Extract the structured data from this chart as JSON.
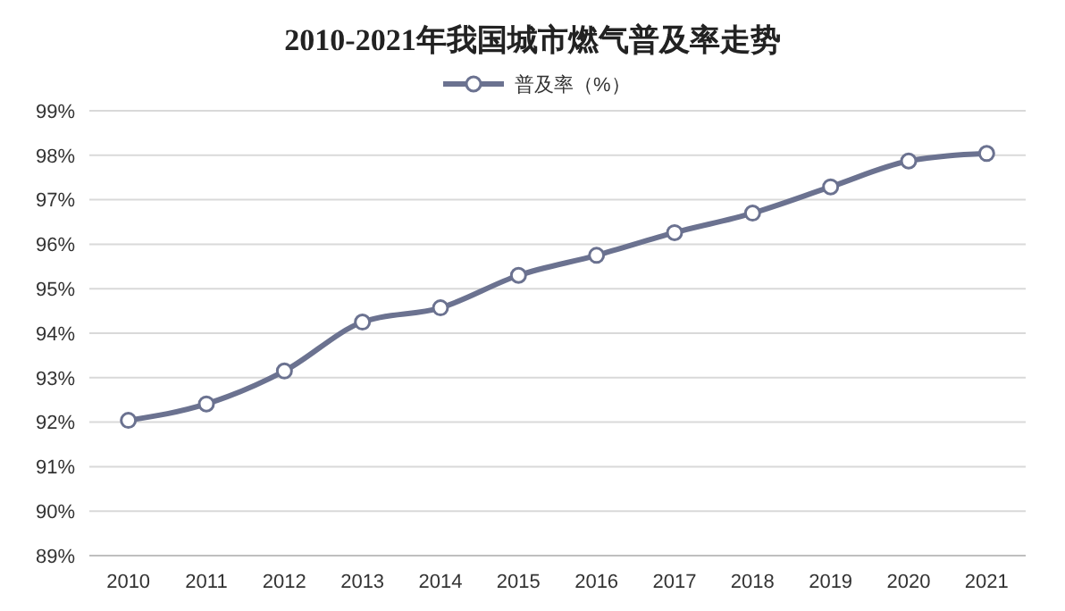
{
  "chart_data": {
    "type": "line",
    "title": "2010-2021年我国城市燃气普及率走势",
    "categories": [
      "2010",
      "2011",
      "2012",
      "2013",
      "2014",
      "2015",
      "2016",
      "2017",
      "2018",
      "2019",
      "2020",
      "2021"
    ],
    "series": [
      {
        "name": "普及率（%）",
        "color": "#6b7290",
        "values": [
          92.04,
          92.41,
          93.15,
          94.25,
          94.57,
          95.3,
          95.75,
          96.26,
          96.7,
          97.29,
          97.87,
          98.04
        ]
      }
    ],
    "ylim": [
      89,
      99
    ],
    "yticks": [
      {
        "value": 89,
        "label": "89%"
      },
      {
        "value": 90,
        "label": "90%"
      },
      {
        "value": 91,
        "label": "91%"
      },
      {
        "value": 92,
        "label": "92%"
      },
      {
        "value": 93,
        "label": "93%"
      },
      {
        "value": 94,
        "label": "94%"
      },
      {
        "value": 95,
        "label": "95%"
      },
      {
        "value": 96,
        "label": "96%"
      },
      {
        "value": 97,
        "label": "97%"
      },
      {
        "value": 98,
        "label": "98%"
      },
      {
        "value": 99,
        "label": "99%"
      }
    ],
    "grid": "y",
    "legend": "top",
    "marker": "circle"
  }
}
